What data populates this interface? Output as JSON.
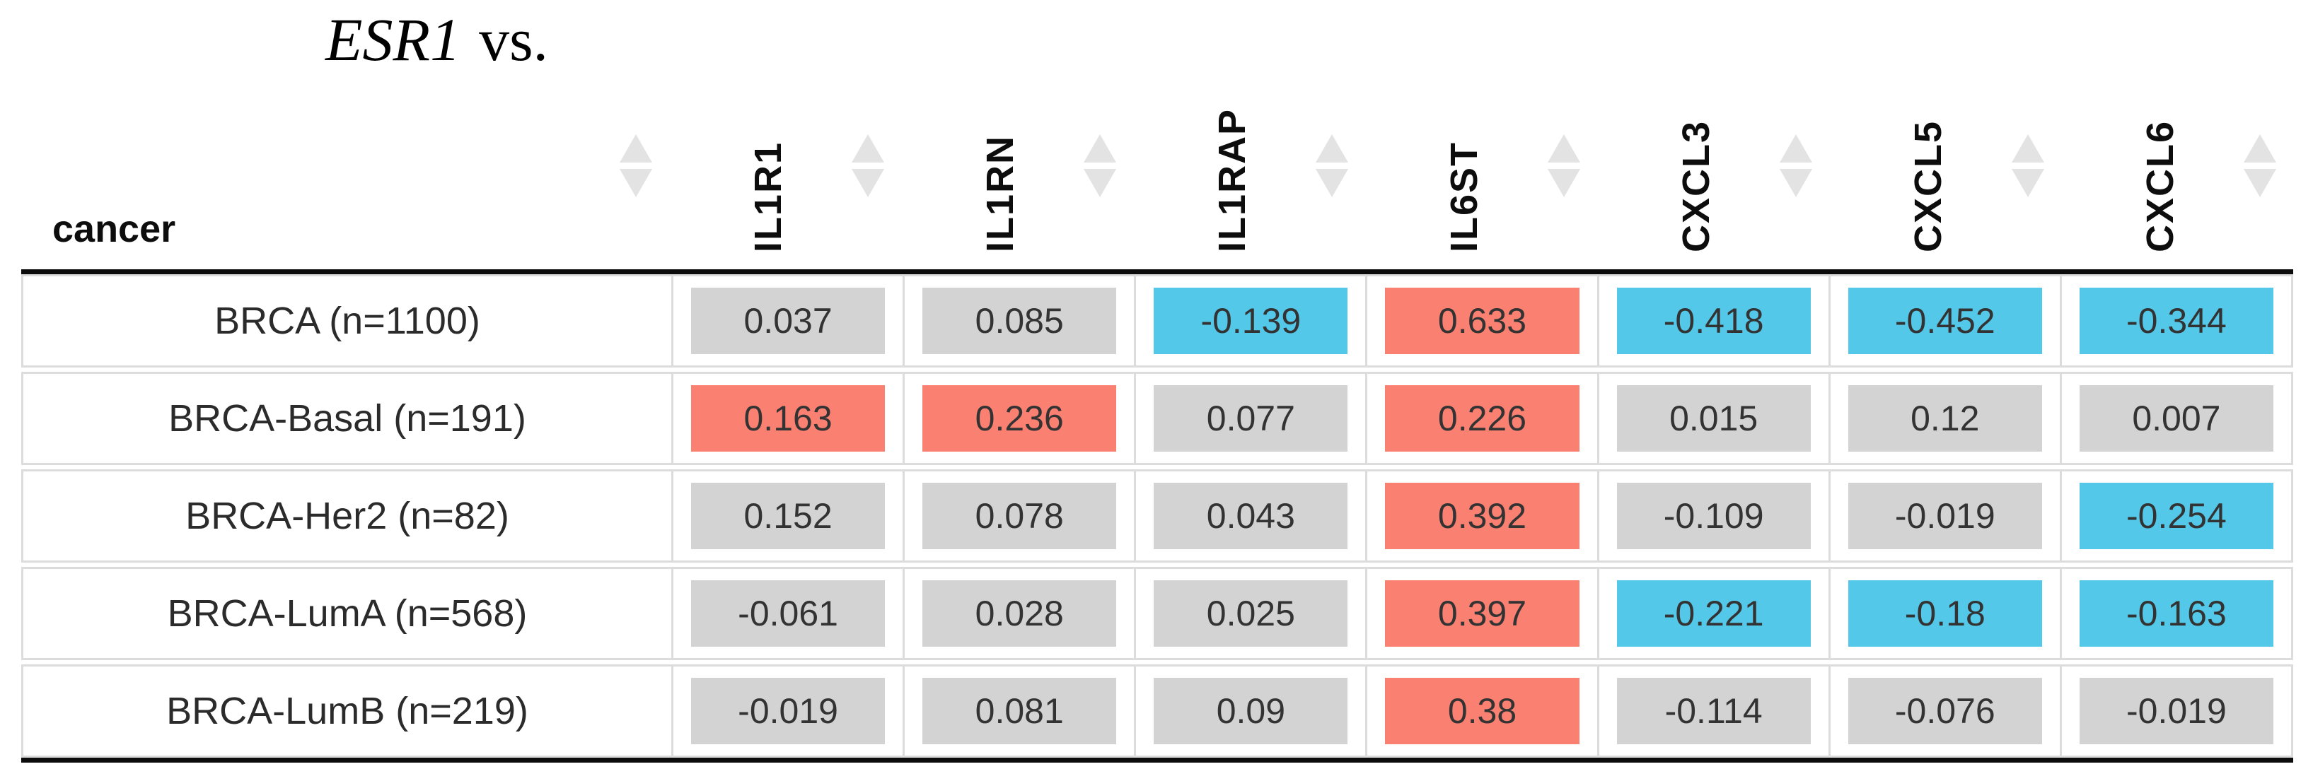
{
  "title": {
    "gene": "ESR1",
    "suffix": "vs."
  },
  "table": {
    "row_header_label": "cancer",
    "columns": [
      "IL1R1",
      "IL1RN",
      "IL1RAP",
      "IL6ST",
      "CXCL3",
      "CXCL5",
      "CXCL6"
    ],
    "rows": [
      {
        "label": "BRCA (n=1100)",
        "values": [
          {
            "v": "0.037",
            "c": "neu"
          },
          {
            "v": "0.085",
            "c": "neu"
          },
          {
            "v": "-0.139",
            "c": "neg"
          },
          {
            "v": "0.633",
            "c": "pos"
          },
          {
            "v": "-0.418",
            "c": "neg"
          },
          {
            "v": "-0.452",
            "c": "neg"
          },
          {
            "v": "-0.344",
            "c": "neg"
          }
        ]
      },
      {
        "label": "BRCA-Basal (n=191)",
        "values": [
          {
            "v": "0.163",
            "c": "pos"
          },
          {
            "v": "0.236",
            "c": "pos"
          },
          {
            "v": "0.077",
            "c": "neu"
          },
          {
            "v": "0.226",
            "c": "pos"
          },
          {
            "v": "0.015",
            "c": "neu"
          },
          {
            "v": "0.12",
            "c": "neu"
          },
          {
            "v": "0.007",
            "c": "neu"
          }
        ]
      },
      {
        "label": "BRCA-Her2 (n=82)",
        "values": [
          {
            "v": "0.152",
            "c": "neu"
          },
          {
            "v": "0.078",
            "c": "neu"
          },
          {
            "v": "0.043",
            "c": "neu"
          },
          {
            "v": "0.392",
            "c": "pos"
          },
          {
            "v": "-0.109",
            "c": "neu"
          },
          {
            "v": "-0.019",
            "c": "neu"
          },
          {
            "v": "-0.254",
            "c": "neg"
          }
        ]
      },
      {
        "label": "BRCA-LumA (n=568)",
        "values": [
          {
            "v": "-0.061",
            "c": "neu"
          },
          {
            "v": "0.028",
            "c": "neu"
          },
          {
            "v": "0.025",
            "c": "neu"
          },
          {
            "v": "0.397",
            "c": "pos"
          },
          {
            "v": "-0.221",
            "c": "neg"
          },
          {
            "v": "-0.18",
            "c": "neg"
          },
          {
            "v": "-0.163",
            "c": "neg"
          }
        ]
      },
      {
        "label": "BRCA-LumB (n=219)",
        "values": [
          {
            "v": "-0.019",
            "c": "neu"
          },
          {
            "v": "0.081",
            "c": "neu"
          },
          {
            "v": "0.09",
            "c": "neu"
          },
          {
            "v": "0.38",
            "c": "pos"
          },
          {
            "v": "-0.114",
            "c": "neu"
          },
          {
            "v": "-0.076",
            "c": "neu"
          },
          {
            "v": "-0.019",
            "c": "neu"
          }
        ]
      }
    ]
  },
  "colors": {
    "pos": "#fa8072",
    "neg": "#54c8e8",
    "neu": "#d3d3d3"
  },
  "icons": {
    "sort": "up-down-sort-arrows"
  }
}
